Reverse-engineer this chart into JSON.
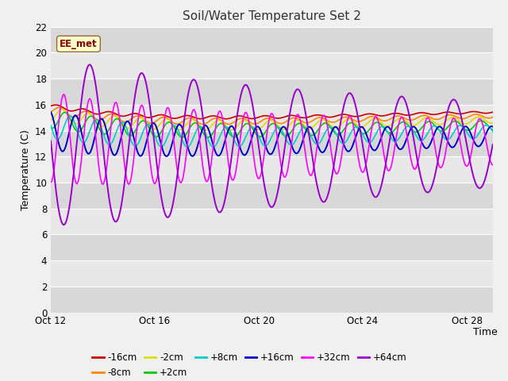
{
  "title": "Soil/Water Temperature Set 2",
  "xlabel": "Time",
  "ylabel": "Temperature (C)",
  "ylim": [
    0,
    22
  ],
  "yticks": [
    0,
    2,
    4,
    6,
    8,
    10,
    12,
    14,
    16,
    18,
    20,
    22
  ],
  "xtick_labels": [
    "Oct 12",
    "Oct 16",
    "Oct 20",
    "Oct 24",
    "Oct 28"
  ],
  "xtick_positions": [
    0,
    4,
    8,
    12,
    16
  ],
  "n_days": 17,
  "series_order": [
    "-16cm",
    "-8cm",
    "-2cm",
    "+2cm",
    "+8cm",
    "+16cm",
    "+32cm",
    "+64cm"
  ],
  "series": {
    "-16cm": {
      "color": "#cc0000",
      "base": 15.9,
      "amp": 0.15,
      "period": 1.0,
      "lag": 0.0,
      "decay": 0.09,
      "lw": 1.2
    },
    "-8cm": {
      "color": "#ff8800",
      "base": 15.6,
      "amp": 0.3,
      "period": 1.0,
      "lag": 0.1,
      "decay": 0.09,
      "lw": 1.2
    },
    "-2cm": {
      "color": "#dddd00",
      "base": 15.3,
      "amp": 0.5,
      "period": 1.0,
      "lag": 0.2,
      "decay": 0.09,
      "lw": 1.2
    },
    "+2cm": {
      "color": "#00cc00",
      "base": 14.9,
      "amp": 0.7,
      "period": 1.0,
      "lag": 0.3,
      "decay": 0.09,
      "lw": 1.2
    },
    "+8cm": {
      "color": "#00cccc",
      "base": 14.4,
      "amp": 1.0,
      "period": 1.0,
      "lag": 0.5,
      "decay": 0.09,
      "lw": 1.2
    },
    "+16cm": {
      "color": "#0000cc",
      "base": 14.0,
      "amp": 1.5,
      "period": 1.0,
      "lag": 0.7,
      "decay": 0.08,
      "lw": 1.4
    },
    "+32cm": {
      "color": "#ff00ff",
      "base": 13.5,
      "amp": 3.5,
      "period": 1.0,
      "lag": 0.25,
      "decay": 0.07,
      "lw": 1.2
    },
    "+64cm": {
      "color": "#9900cc",
      "base": 13.2,
      "amp": 6.5,
      "period": 2.0,
      "lag": 0.5,
      "decay": 0.05,
      "lw": 1.4
    }
  },
  "annotation_text": "EE_met",
  "bg_color": "#f0f0f0",
  "plot_bg_light": "#e8e8e8",
  "plot_bg_dark": "#d8d8d8",
  "grid_color": "#ffffff",
  "linewidth": 1.2
}
